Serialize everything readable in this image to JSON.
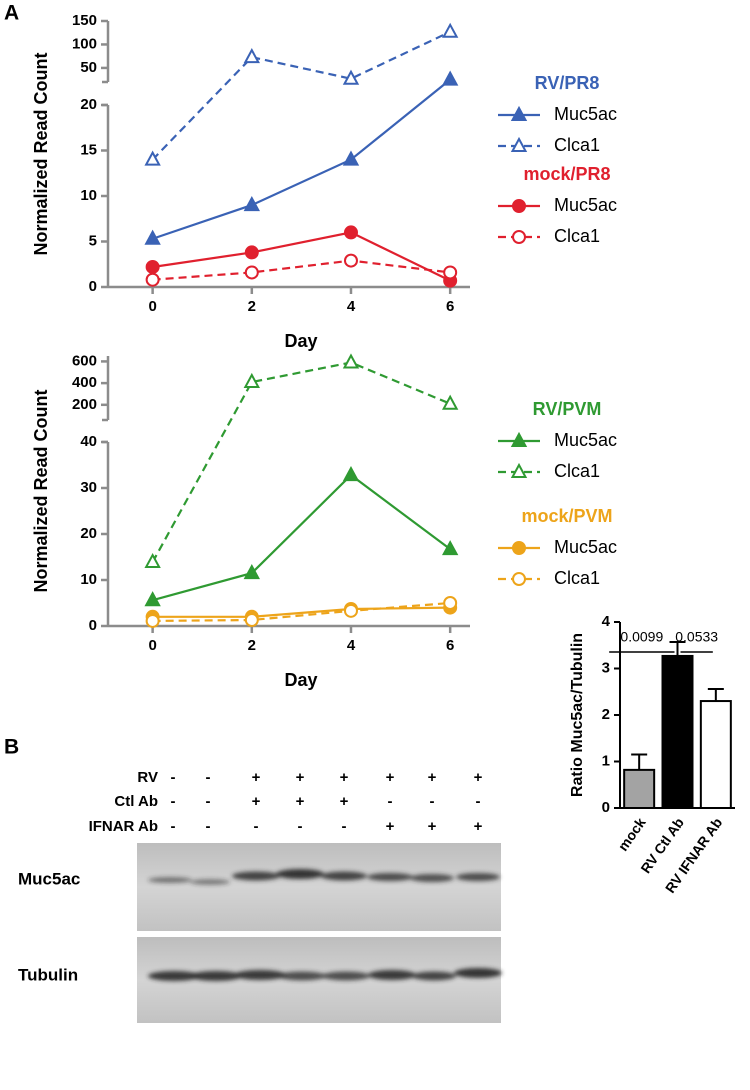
{
  "panels": [
    "A",
    "B"
  ],
  "blot": {
    "conditions": [
      {
        "label": "RV",
        "marks": [
          "-",
          "-",
          "+",
          "+",
          "+",
          "+",
          "+",
          "+"
        ]
      },
      {
        "label": "Ctl Ab",
        "marks": [
          "-",
          "-",
          "+",
          "+",
          "+",
          "-",
          "-",
          "-"
        ]
      },
      {
        "label": "IFNAR Ab",
        "marks": [
          "-",
          "-",
          "-",
          "-",
          "-",
          "+",
          "+",
          "+"
        ]
      }
    ],
    "bands": [
      "Muc5ac",
      "Tubulin"
    ]
  },
  "chart_data": [
    {
      "type": "line",
      "x": [
        0,
        2,
        4,
        6
      ],
      "xlim": [
        -0.9,
        6.4
      ],
      "xticks": [
        0,
        2,
        4,
        6
      ],
      "x_label": "Day",
      "y_label": "Normalized Read Count",
      "ylim": [
        0,
        20
      ],
      "yticks": [
        0,
        5,
        10,
        15,
        20
      ],
      "ylim_top": [
        20,
        150
      ],
      "yticks_top": [
        50,
        100,
        150
      ],
      "axis_color": "#8c8c8c",
      "series_groups": [
        {
          "title": "RV/PR8",
          "color": "#3a62b5",
          "series": [
            {
              "name": "Muc5ac",
              "color": "#3a62b5",
              "marker": "triangle",
              "filled": true,
              "dashed": false,
              "values": [
                5.3,
                9,
                14,
                25
              ]
            },
            {
              "name": "Clca1",
              "color": "#3a62b5",
              "marker": "triangle",
              "filled": false,
              "dashed": true,
              "values": [
                14,
                73,
                27,
                127
              ]
            }
          ]
        },
        {
          "title": "mock/PR8",
          "color": "#e0202e",
          "series": [
            {
              "name": "Muc5ac",
              "color": "#e0202e",
              "marker": "circle",
              "filled": true,
              "dashed": false,
              "values": [
                2.2,
                3.8,
                6.0,
                0.7
              ]
            },
            {
              "name": "Clca1",
              "color": "#e0202e",
              "marker": "circle",
              "filled": false,
              "dashed": true,
              "values": [
                0.8,
                1.6,
                2.9,
                1.6
              ]
            }
          ]
        }
      ]
    },
    {
      "type": "line",
      "x": [
        0,
        2,
        4,
        6
      ],
      "xlim": [
        -0.9,
        6.4
      ],
      "xticks": [
        0,
        2,
        4,
        6
      ],
      "x_label": "Day",
      "y_label": "Normalized Read Count",
      "ylim": [
        0,
        40
      ],
      "yticks": [
        0,
        10,
        20,
        30,
        40
      ],
      "ylim_top": [
        60,
        650
      ],
      "yticks_top": [
        200,
        400,
        600
      ],
      "axis_color": "#8c8c8c",
      "series_groups": [
        {
          "title": "RV/PVM",
          "color": "#2f9a32",
          "series": [
            {
              "name": "Muc5ac",
              "color": "#2f9a32",
              "marker": "triangle",
              "filled": true,
              "dashed": false,
              "values": [
                5.6,
                11.5,
                32.8,
                16.7
              ]
            },
            {
              "name": "Clca1",
              "color": "#2f9a32",
              "marker": "triangle",
              "filled": false,
              "dashed": true,
              "values": [
                13.9,
                410,
                590,
                210
              ]
            }
          ]
        },
        {
          "title": "mock/PVM",
          "color": "#eda41a",
          "series": [
            {
              "name": "Muc5ac",
              "color": "#eda41a",
              "marker": "circle",
              "filled": true,
              "dashed": false,
              "values": [
                2.0,
                2.0,
                3.7,
                4.0
              ]
            },
            {
              "name": "Clca1",
              "color": "#eda41a",
              "marker": "circle",
              "filled": false,
              "dashed": true,
              "values": [
                1.1,
                1.3,
                3.3,
                5.0
              ]
            }
          ]
        }
      ]
    },
    {
      "type": "bar",
      "categories": [
        "mock",
        "RV Ctl Ab",
        "RV IFNAR Ab"
      ],
      "values": [
        0.82,
        3.27,
        2.3
      ],
      "errors": [
        0.33,
        0.3,
        0.26
      ],
      "colors": [
        "#a3a3a3",
        "#000000",
        "#ffffff"
      ],
      "edge_color": "#000000",
      "ylim": [
        0,
        4
      ],
      "yticks": [
        0,
        1,
        2,
        3,
        4
      ],
      "y_label": "Ratio Muc5ac/Tubulin",
      "comparisons": [
        {
          "label": "0.0099",
          "from": "mock",
          "to": "RV Ctl Ab"
        },
        {
          "label": "0.0533",
          "from": "RV Ctl Ab",
          "to": "RV IFNAR Ab"
        }
      ]
    }
  ]
}
